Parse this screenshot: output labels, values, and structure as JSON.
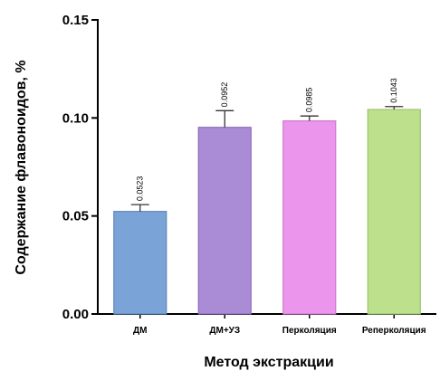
{
  "chart_data": {
    "type": "bar",
    "categories": [
      "ДМ",
      "ДМ+УЗ",
      "Перколяция",
      "Реперколяция"
    ],
    "values": [
      0.0523,
      0.0952,
      0.0985,
      0.1043
    ],
    "value_labels": [
      "0.0523",
      "0.0952",
      "0.0985",
      "0.1043"
    ],
    "errors": [
      0.0035,
      0.0085,
      0.0025,
      0.0015
    ],
    "colors": [
      "#7aa3d8",
      "#a98bd6",
      "#ec95ec",
      "#bde08d"
    ],
    "edge_colors": [
      "#5f86bc",
      "#8c6cbc",
      "#cf78cf",
      "#9ec46e"
    ],
    "xlabel": "Метод экстракции",
    "ylabel": "Содержание флавоноидов, %",
    "ylim": [
      0,
      0.15
    ],
    "yticks": [
      0.0,
      0.05,
      0.1,
      0.15
    ],
    "ytick_labels": [
      "0.00",
      "0.05",
      "0.10",
      "0.15"
    ],
    "grid": false,
    "legend": "none"
  }
}
